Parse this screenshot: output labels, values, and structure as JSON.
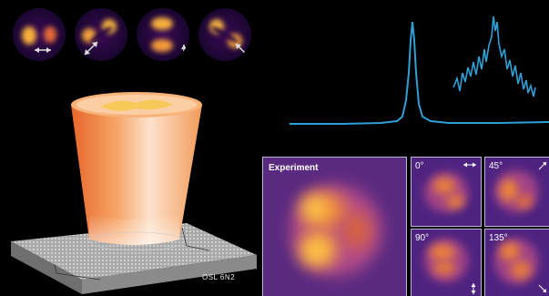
{
  "panels": {
    "experiment_label": "Experiment",
    "angles": [
      "0°",
      "45°",
      "90°",
      "135°"
    ]
  },
  "device": {
    "label": "OSL 6N2"
  },
  "colors": {
    "background": "#000000",
    "spectrum_line": "#2ea0d6",
    "beam": "#f08a3c",
    "colormap_low": "#3a1560",
    "colormap_high": "#ffd24a"
  },
  "icons": [
    "double-arrow-icon",
    "polarization-arrow-icon"
  ]
}
